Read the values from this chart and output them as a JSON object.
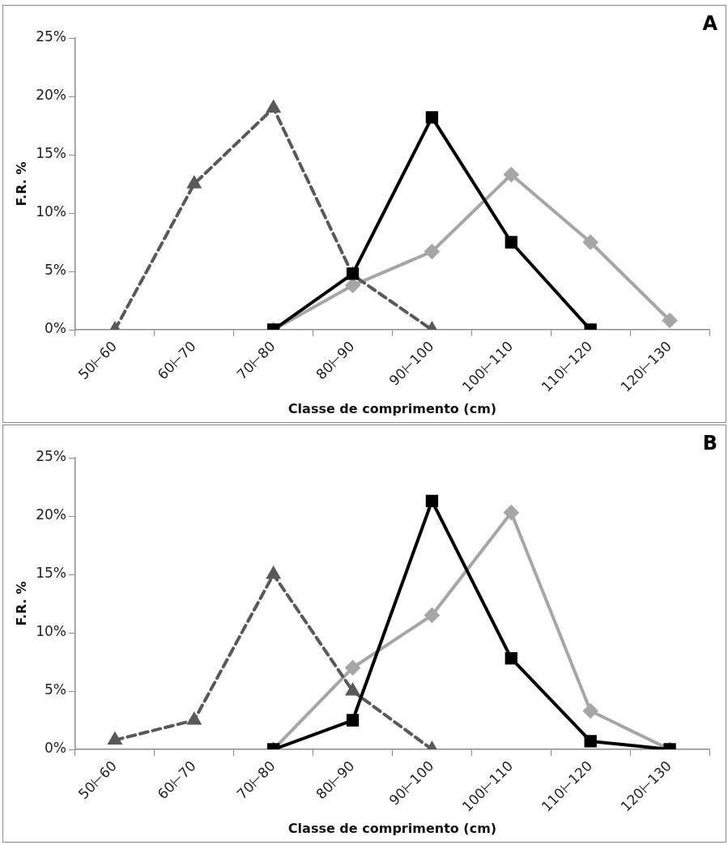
{
  "chart_data": [
    {
      "type": "line",
      "title": "A",
      "xlabel": "Classe de comprimento (cm)",
      "ylabel": "F.R. %",
      "categories": [
        "50⊢60",
        "60⊢70",
        "70⊢80",
        "80⊢90",
        "90⊢100",
        "100⊢110",
        "110⊢120",
        "120⊢130"
      ],
      "series": [
        {
          "color": "#595959",
          "marker": "triangle",
          "line_style": "dashed",
          "values": [
            0,
            12.5,
            19,
            4.7,
            0,
            null,
            null,
            null
          ]
        },
        {
          "color": "#000000",
          "marker": "square",
          "line_style": "solid",
          "values": [
            null,
            null,
            0,
            4.8,
            18.2,
            7.5,
            0,
            null
          ]
        },
        {
          "color": "#a6a6a6",
          "marker": "diamond",
          "line_style": "solid",
          "values": [
            null,
            null,
            0,
            3.8,
            6.7,
            13.3,
            7.5,
            0.8
          ]
        }
      ],
      "ylim": [
        0,
        25
      ],
      "yticks": [
        {
          "value": 0,
          "label": "0%"
        },
        {
          "value": 5,
          "label": "5%"
        },
        {
          "value": 10,
          "label": "10%"
        },
        {
          "value": 15,
          "label": "15%"
        },
        {
          "value": 20,
          "label": "20%"
        },
        {
          "value": 25,
          "label": "25%"
        }
      ],
      "grid": false,
      "legend": false
    },
    {
      "type": "line",
      "title": "B",
      "xlabel": "Classe de comprimento (cm)",
      "ylabel": "F.R. %",
      "categories": [
        "50⊢60",
        "60⊢70",
        "70⊢80",
        "80⊢90",
        "90⊢100",
        "100⊢110",
        "110⊢120",
        "120⊢130"
      ],
      "series": [
        {
          "color": "#595959",
          "marker": "triangle",
          "line_style": "dashed",
          "values": [
            0.8,
            2.5,
            15,
            5,
            0,
            null,
            null,
            null
          ]
        },
        {
          "color": "#000000",
          "marker": "square",
          "line_style": "solid",
          "values": [
            null,
            null,
            0,
            2.5,
            21.3,
            7.8,
            0.7,
            0
          ]
        },
        {
          "color": "#a6a6a6",
          "marker": "diamond",
          "line_style": "solid",
          "values": [
            null,
            null,
            0,
            7,
            11.5,
            20.3,
            3.3,
            0
          ]
        }
      ],
      "ylim": [
        0,
        25
      ],
      "yticks": [
        {
          "value": 0,
          "label": "0%"
        },
        {
          "value": 5,
          "label": "5%"
        },
        {
          "value": 10,
          "label": "10%"
        },
        {
          "value": 15,
          "label": "15%"
        },
        {
          "value": 20,
          "label": "20%"
        },
        {
          "value": 25,
          "label": "25%"
        }
      ],
      "grid": false,
      "legend": false
    }
  ]
}
